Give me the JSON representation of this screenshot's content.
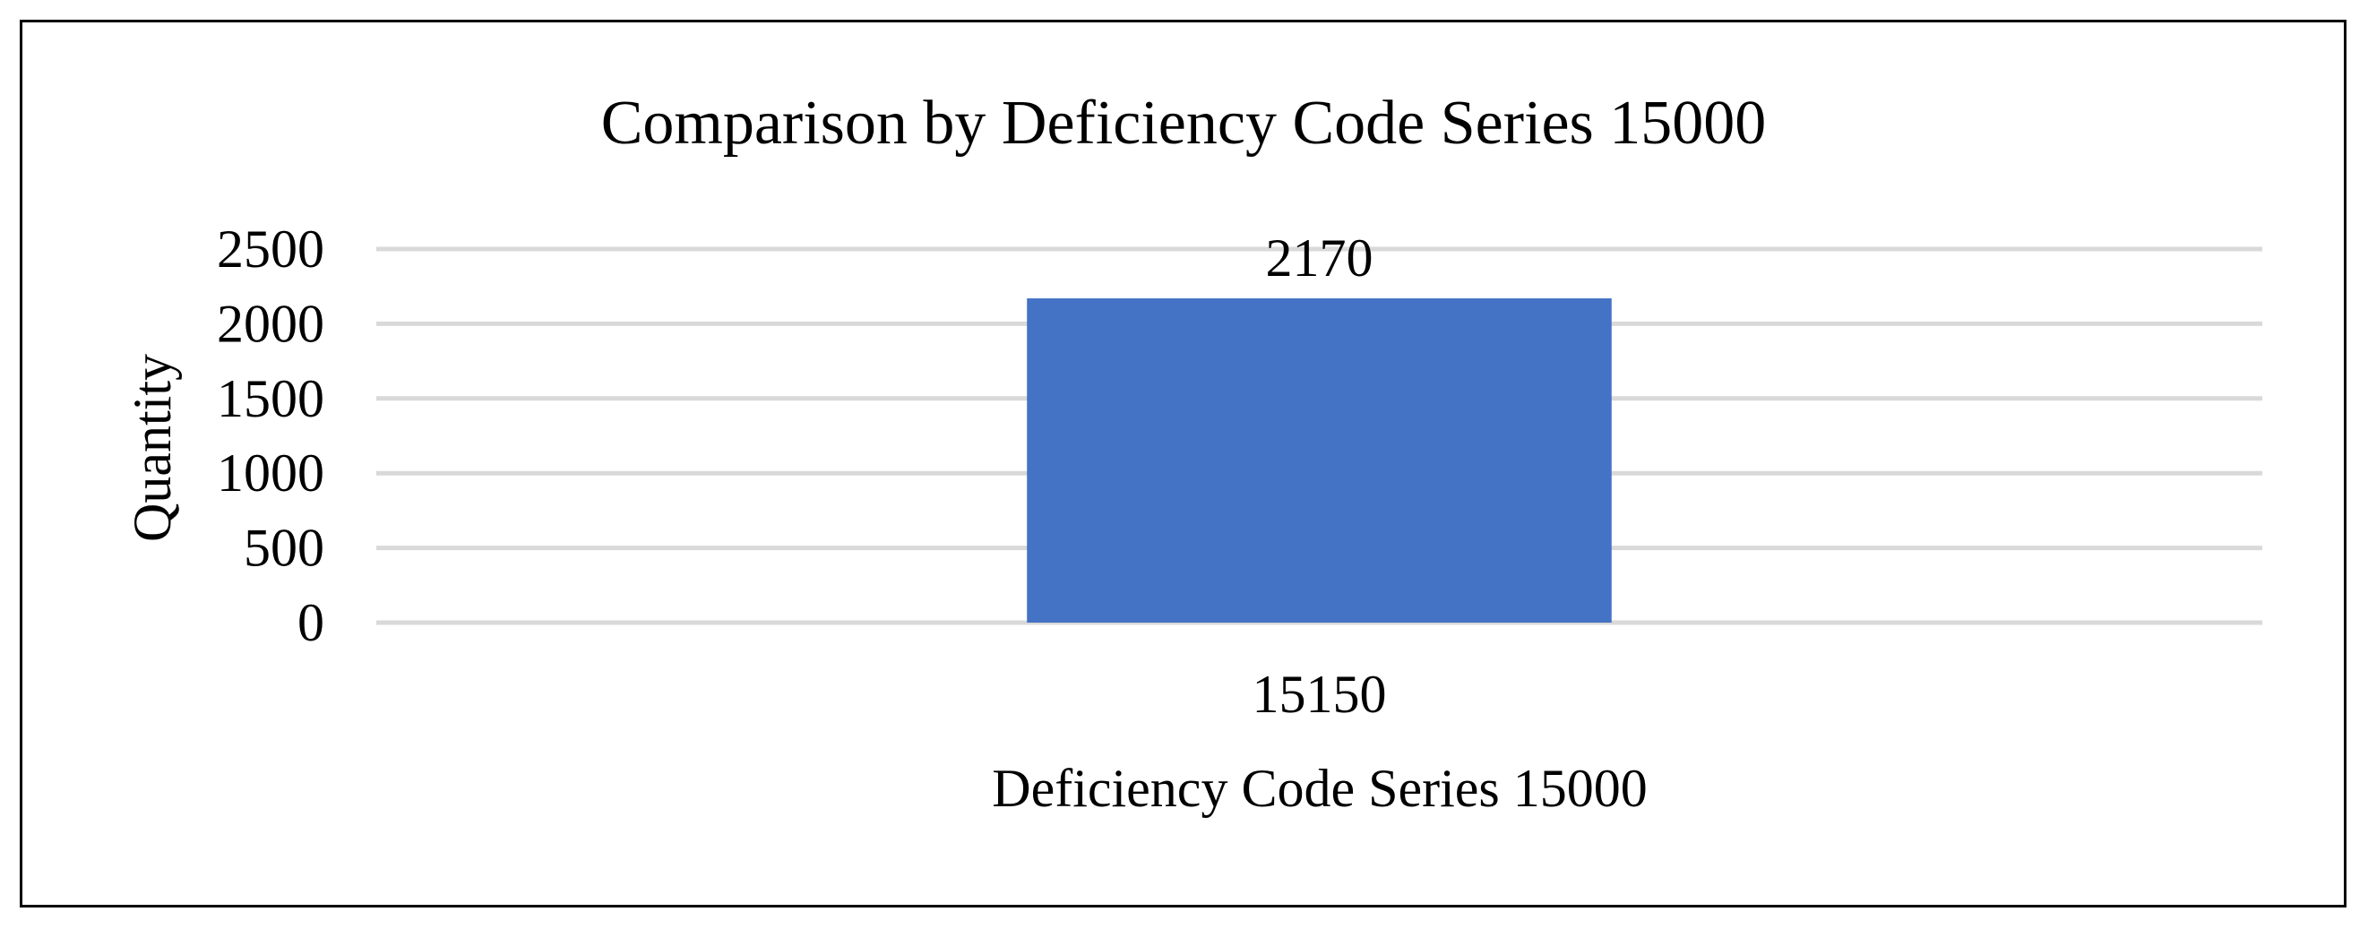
{
  "chart_data": {
    "type": "bar",
    "title": "Comparison by Deficiency Code Series 15000",
    "xlabel": "Deficiency Code Series 15000",
    "ylabel": "Quantity",
    "categories": [
      "15150"
    ],
    "values": [
      2170
    ],
    "data_labels": [
      "2170"
    ],
    "ylim": [
      0,
      2500
    ],
    "yticks": [
      0,
      500,
      1000,
      1500,
      2000,
      2500
    ],
    "ytick_labels": [
      "0",
      "500",
      "1000",
      "1500",
      "2000",
      "2500"
    ],
    "grid": true,
    "legend": "none",
    "colors": {
      "bar": "#4472C4",
      "grid": "#D9D9D9",
      "text": "#000000",
      "border": "#000000"
    }
  }
}
